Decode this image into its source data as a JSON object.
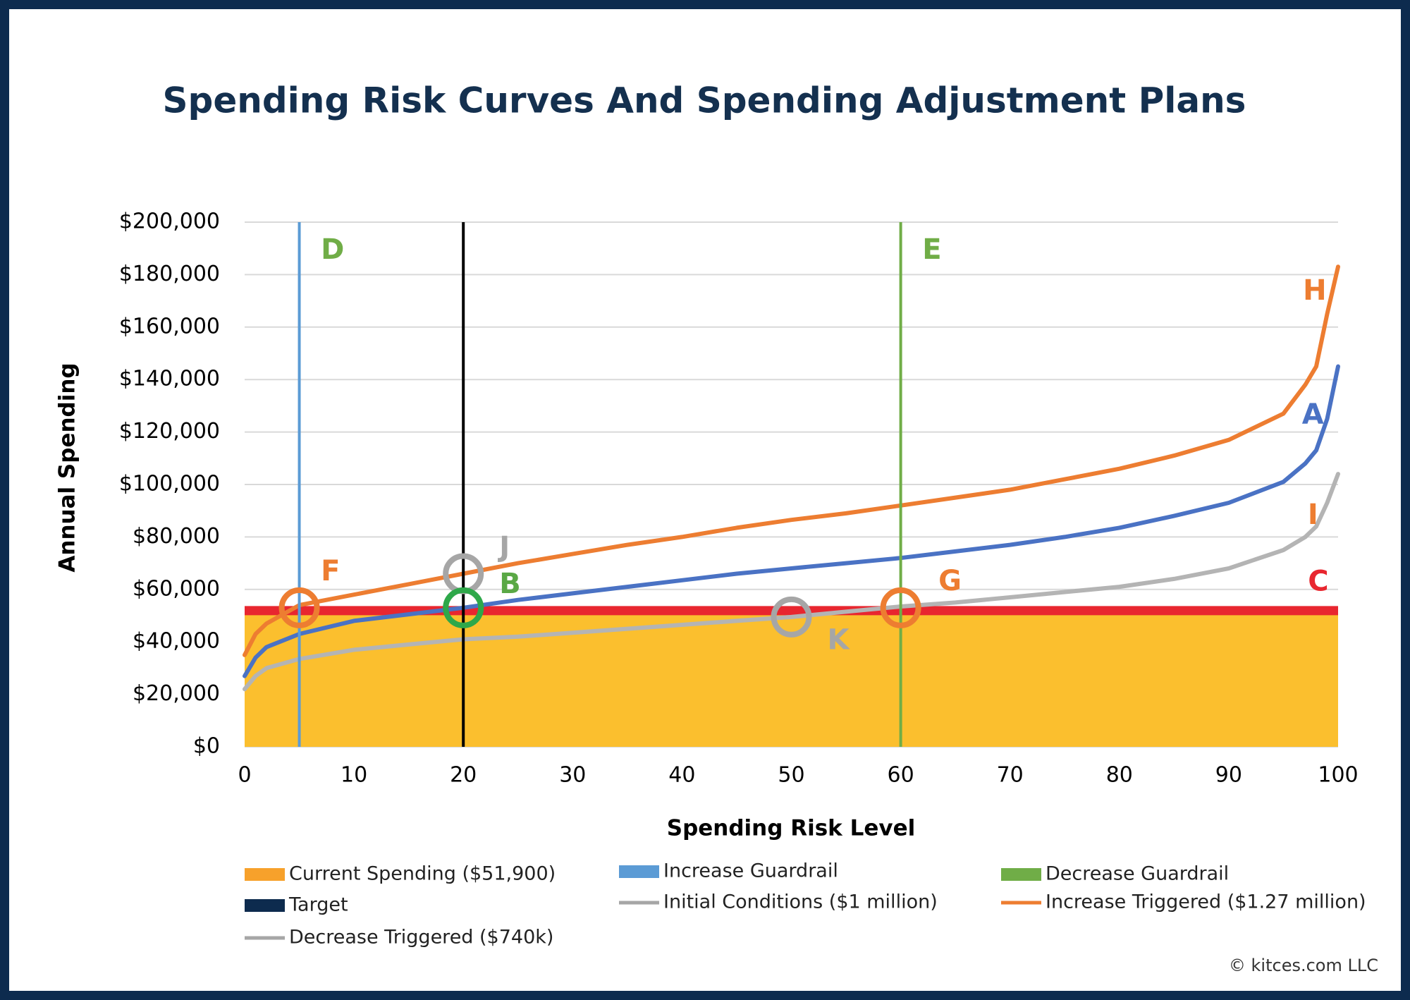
{
  "chart_data": {
    "type": "line",
    "title": "Spending Risk Curves And Spending Adjustment Plans",
    "x_label": "Spending Risk Level",
    "y_label": "Annual Spending",
    "xlim": [
      0,
      100
    ],
    "ylim": [
      0,
      200000
    ],
    "xticks": [
      0,
      10,
      20,
      30,
      40,
      50,
      60,
      70,
      80,
      90,
      100
    ],
    "yticks": [
      {
        "value": 0,
        "label": "$0"
      },
      {
        "value": 20000,
        "label": "$20,000"
      },
      {
        "value": 40000,
        "label": "$40,000"
      },
      {
        "value": 60000,
        "label": "$60,000"
      },
      {
        "value": 80000,
        "label": "$80,000"
      },
      {
        "value": 100000,
        "label": "$100,000"
      },
      {
        "value": 120000,
        "label": "$120,000"
      },
      {
        "value": 140000,
        "label": "$140,000"
      },
      {
        "value": 160000,
        "label": "$160,000"
      },
      {
        "value": 180000,
        "label": "$180,000"
      },
      {
        "value": 200000,
        "label": "$200,000"
      }
    ],
    "grid": true,
    "x": [
      0,
      1,
      2,
      5,
      10,
      15,
      20,
      25,
      30,
      35,
      40,
      45,
      50,
      55,
      60,
      65,
      70,
      75,
      80,
      85,
      90,
      95,
      97,
      98,
      99,
      100
    ],
    "area": {
      "name": "Current Spending ($51,900)",
      "value": 51900,
      "color": "#fbbf2e",
      "legend_color": "#f7a12b",
      "line_color": "#e8262f",
      "label": "C",
      "label_color": "#e8262f"
    },
    "vlines": [
      {
        "name": "Increase Guardrail",
        "x": 5,
        "color": "#5b9bd5",
        "legend_color": "#5b9bd5",
        "label": "D",
        "label_color": "#70ad47"
      },
      {
        "name": "Target",
        "x": 20,
        "color": "#000000",
        "legend_color": "#0d2b4e"
      },
      {
        "name": "Decrease Guardrail",
        "x": 60,
        "color": "#70ad47",
        "legend_color": "#70ad47",
        "label": "E",
        "label_color": "#70ad47"
      }
    ],
    "series": [
      {
        "name": "Initial Conditions ($1 million)",
        "color": "#4a72c4",
        "legend_color": "#a6a6a6",
        "label": "A",
        "label_color": "#4a72c4",
        "values": [
          27000,
          34000,
          38000,
          43000,
          48000,
          50500,
          53000,
          56000,
          58500,
          61000,
          63500,
          66000,
          68000,
          70000,
          72000,
          74500,
          77000,
          80000,
          83500,
          88000,
          93000,
          101000,
          108000,
          113000,
          125000,
          145000
        ]
      },
      {
        "name": "Increase Triggered ($1.27 million)",
        "color": "#ed7d31",
        "legend_color": "#ed7d31",
        "label": "H",
        "label_color": "#ed7d31",
        "values": [
          35000,
          43000,
          47000,
          54000,
          58000,
          62000,
          66000,
          70000,
          73500,
          77000,
          80000,
          83500,
          86500,
          89000,
          92000,
          95000,
          98000,
          102000,
          106000,
          111000,
          117000,
          127000,
          138000,
          145000,
          165000,
          183000
        ]
      },
      {
        "name": "Decrease Triggered ($740k)",
        "color": "#b4b4b4",
        "legend_color": "#a6a6a6",
        "label": "I",
        "label_color": "#ed7d31",
        "values": [
          22000,
          27000,
          30000,
          33500,
          37000,
          39000,
          41000,
          42000,
          43500,
          45000,
          46500,
          48000,
          49500,
          51500,
          53500,
          55000,
          57000,
          59000,
          61000,
          64000,
          68000,
          75000,
          80000,
          84000,
          93000,
          104000
        ]
      }
    ],
    "markers": [
      {
        "label": "F",
        "x": 5,
        "y": 53000,
        "color": "#ed7d31",
        "label_color": "#ed7d31"
      },
      {
        "label": "J",
        "x": 20,
        "y": 66000,
        "color": "#a6a6a6",
        "label_color": "#a6a6a6"
      },
      {
        "label": "B",
        "x": 20,
        "y": 53000,
        "color": "#2ea84a",
        "label_color": "#5aa845"
      },
      {
        "label": "K",
        "x": 50,
        "y": 49500,
        "color": "#a6a6a6",
        "label_color": "#a6a6a6"
      },
      {
        "label": "G",
        "x": 60,
        "y": 53000,
        "color": "#ed7d31",
        "label_color": "#ed7d31"
      }
    ],
    "source": "© kitces.com LLC"
  }
}
